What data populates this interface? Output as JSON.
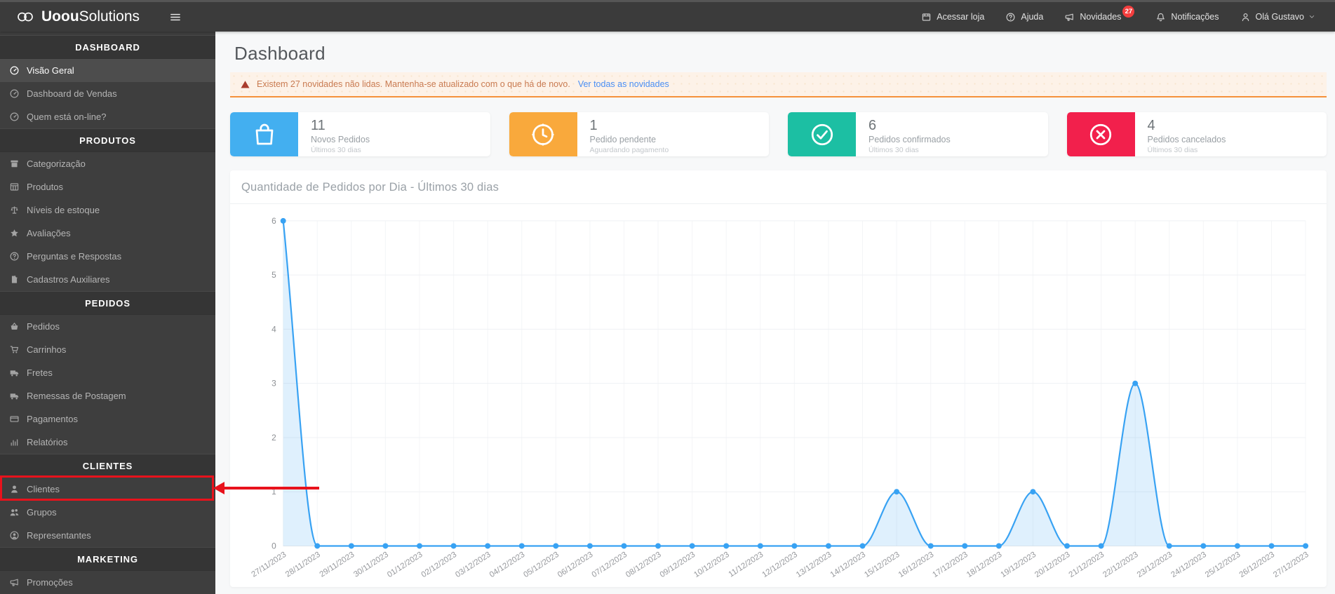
{
  "topbar": {
    "logo": {
      "text_bold": "Uoou",
      "text_light": "Solutions",
      "icon": "infinity-logo-icon"
    },
    "menu": [
      {
        "label": "Acessar loja",
        "icon": "store-icon"
      },
      {
        "label": "Ajuda",
        "icon": "help-icon"
      },
      {
        "label": "Novidades",
        "icon": "megaphone-icon",
        "badge": "27"
      },
      {
        "label": "Notificações",
        "icon": "bell-icon"
      },
      {
        "label": "Olá Gustavo",
        "icon": "person-icon",
        "chevron": true
      }
    ]
  },
  "sidebar": {
    "sections": [
      {
        "title": "DASHBOARD",
        "items": [
          {
            "label": "Visão Geral",
            "icon": "gauge-icon",
            "active": true
          },
          {
            "label": "Dashboard de Vendas",
            "icon": "gauge-icon"
          },
          {
            "label": "Quem está on-line?",
            "icon": "gauge-icon"
          }
        ]
      },
      {
        "title": "PRODUTOS",
        "items": [
          {
            "label": "Categorização",
            "icon": "archive-icon"
          },
          {
            "label": "Produtos",
            "icon": "table-icon"
          },
          {
            "label": "Níveis de estoque",
            "icon": "scale-icon"
          },
          {
            "label": "Avaliações",
            "icon": "star-icon"
          },
          {
            "label": "Perguntas e Respostas",
            "icon": "question-icon"
          },
          {
            "label": "Cadastros Auxiliares",
            "icon": "file-icon"
          }
        ]
      },
      {
        "title": "PEDIDOS",
        "items": [
          {
            "label": "Pedidos",
            "icon": "basket-icon"
          },
          {
            "label": "Carrinhos",
            "icon": "cart-icon"
          },
          {
            "label": "Fretes",
            "icon": "truck-icon"
          },
          {
            "label": "Remessas de Postagem",
            "icon": "shipping-icon"
          },
          {
            "label": "Pagamentos",
            "icon": "credit-card-icon"
          },
          {
            "label": "Relatórios",
            "icon": "bar-chart-icon"
          }
        ]
      },
      {
        "title": "CLIENTES",
        "items": [
          {
            "label": "Clientes",
            "icon": "user-icon",
            "highlighted": true
          },
          {
            "label": "Grupos",
            "icon": "users-icon"
          },
          {
            "label": "Representantes",
            "icon": "user-circle-icon"
          }
        ]
      },
      {
        "title": "MARKETING",
        "items": [
          {
            "label": "Promoções",
            "icon": "megaphone-icon"
          }
        ]
      }
    ]
  },
  "main": {
    "page_title": "Dashboard",
    "alert": {
      "icon": "warning-icon",
      "text": "Existem 27 novidades não lidas. Mantenha-se atualizado com o que há de novo.",
      "link_label": "Ver todas as novidades",
      "accent_color": "#F5913B"
    },
    "cards": [
      {
        "value": "11",
        "label": "Novos Pedidos",
        "sublabel": "Últimos 30 dias",
        "icon": "shopping-bag-icon",
        "color": "#43AFF0"
      },
      {
        "value": "1",
        "label": "Pedido pendente",
        "sublabel": "Aguardando pagamento",
        "icon": "clock-icon",
        "color": "#F9A93C"
      },
      {
        "value": "6",
        "label": "Pedidos confirmados",
        "sublabel": "Últimos 30 dias",
        "icon": "check-circle-icon",
        "color": "#1CBFA3"
      },
      {
        "value": "4",
        "label": "Pedidos cancelados",
        "sublabel": "Últimos 30 dias",
        "icon": "x-circle-icon",
        "color": "#F2204C"
      }
    ]
  },
  "chart_data": {
    "type": "area",
    "title": "Quantidade de Pedidos por Dia - Últimos 30 dias",
    "x": [
      "27/11/2023",
      "28/11/2023",
      "29/11/2023",
      "30/11/2023",
      "01/12/2023",
      "02/12/2023",
      "03/12/2023",
      "04/12/2023",
      "05/12/2023",
      "06/12/2023",
      "07/12/2023",
      "08/12/2023",
      "09/12/2023",
      "10/12/2023",
      "11/12/2023",
      "12/12/2023",
      "13/12/2023",
      "14/12/2023",
      "15/12/2023",
      "16/12/2023",
      "17/12/2023",
      "18/12/2023",
      "19/12/2023",
      "20/12/2023",
      "21/12/2023",
      "22/12/2023",
      "23/12/2023",
      "24/12/2023",
      "25/12/2023",
      "26/12/2023",
      "27/12/2023"
    ],
    "values": [
      6,
      0,
      0,
      0,
      0,
      0,
      0,
      0,
      0,
      0,
      0,
      0,
      0,
      0,
      0,
      0,
      0,
      0,
      1,
      0,
      0,
      0,
      1,
      0,
      0,
      3,
      0,
      0,
      0,
      0,
      0
    ],
    "ylim": [
      0,
      6
    ],
    "yticks": [
      0,
      1,
      2,
      3,
      4,
      5,
      6
    ],
    "grid": true,
    "legend": "none",
    "line_color": "#38A2F3",
    "fill_color": "rgba(56,162,243,0.16)"
  },
  "annotation": {
    "shape": "box-and-arrow",
    "target": "Clientes",
    "color": "#E8121C"
  }
}
